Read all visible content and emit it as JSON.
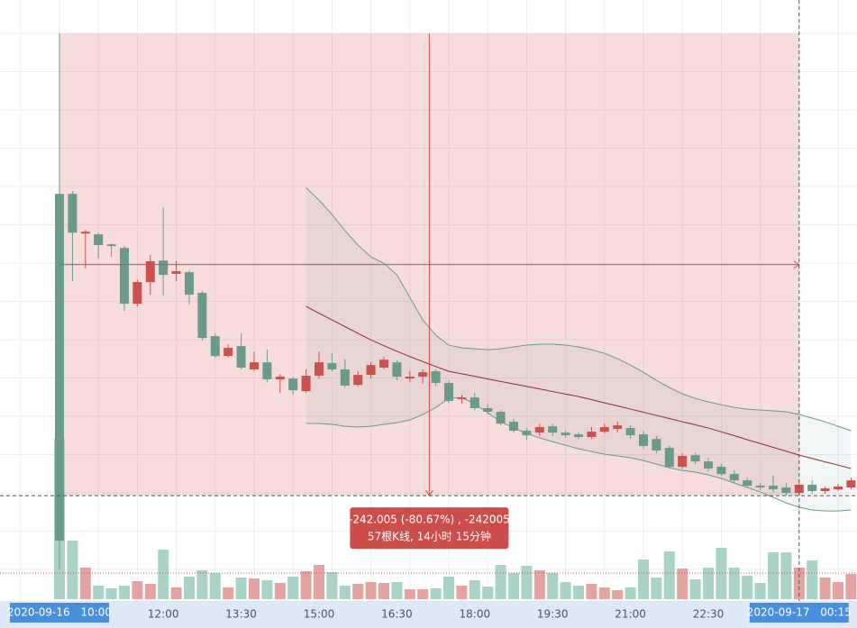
{
  "chart_data": {
    "type": "candlestick",
    "categories": [
      "2020-09-16 10:00",
      null,
      null,
      null,
      null,
      null,
      null,
      null,
      "12:00",
      null,
      null,
      null,
      null,
      null,
      "13:30",
      null,
      null,
      null,
      null,
      null,
      "15:00",
      null,
      null,
      null,
      null,
      null,
      "16:30",
      null,
      null,
      null,
      null,
      null,
      "18:00",
      null,
      null,
      null,
      null,
      null,
      "19:30",
      null,
      null,
      null,
      null,
      null,
      "21:00",
      null,
      null,
      null,
      null,
      null,
      "22:30",
      null,
      null,
      null,
      null,
      null,
      null,
      "2020-09-17 00:15",
      null,
      null,
      null,
      null
    ],
    "open": [
      216.0,
      216.0,
      195.2,
      194.8,
      189.6,
      187.7,
      158.5,
      169.8,
      181.1,
      174.1,
      175.0,
      164.2,
      141.5,
      131.1,
      136.3,
      124.1,
      127.8,
      118.9,
      119.3,
      112.7,
      120.8,
      127.4,
      124.1,
      116.0,
      121.2,
      125.0,
      127.8,
      119.3,
      120.3,
      123.1,
      117.0,
      108.5,
      109.4,
      103.8,
      101.9,
      96.7,
      92.0,
      91.0,
      94.3,
      91.0,
      90.1,
      88.7,
      91.5,
      92.9,
      93.4,
      90.1,
      87.7,
      83.0,
      73.1,
      79.2,
      75.9,
      73.1,
      69.3,
      66.0,
      63.2,
      63.2,
      62.3,
      59.4,
      63.7,
      60.4,
      61.3,
      62.3
    ],
    "high": [
      300,
      217.5,
      197.2,
      195.7,
      190.1,
      188.7,
      171.2,
      184.0,
      209.0,
      180.7,
      175.9,
      165.1,
      142.9,
      137.3,
      142.9,
      133.5,
      134.4,
      121.7,
      120.3,
      124.1,
      133.5,
      132.5,
      129.7,
      123.1,
      127.8,
      130.7,
      128.8,
      123.1,
      124.1,
      124.1,
      118.4,
      110.9,
      111.8,
      106.1,
      102.8,
      98.1,
      93.4,
      95.7,
      95.7,
      92.0,
      91.0,
      93.9,
      95.7,
      96.7,
      94.8,
      92.0,
      89.2,
      84.4,
      80.2,
      80.7,
      77.8,
      74.5,
      71.2,
      67.4,
      64.6,
      68.4,
      64.6,
      64.6,
      66.0,
      62.8,
      64.2,
      67.4
    ],
    "low": [
      19.3,
      170.3,
      177.0,
      182.1,
      183.0,
      154.7,
      157.1,
      163.2,
      162.7,
      170.3,
      158.0,
      139.2,
      130.2,
      130.2,
      124.1,
      123.1,
      117.5,
      111.8,
      110.9,
      111.8,
      119.3,
      123.1,
      114.6,
      115.1,
      119.3,
      124.1,
      118.4,
      117.5,
      116.6,
      115.6,
      106.6,
      106.1,
      102.8,
      100.5,
      94.8,
      91.0,
      87.3,
      89.2,
      89.2,
      88.2,
      87.7,
      87.7,
      90.6,
      91.0,
      87.7,
      82.5,
      80.2,
      72.2,
      72.2,
      74.5,
      70.8,
      68.4,
      64.6,
      62.3,
      60.9,
      59.9,
      58.0,
      58.0,
      58.9,
      58.9,
      60.4,
      61.3
    ],
    "close": [
      34.4,
      195.7,
      196.2,
      189.2,
      188.7,
      158.5,
      169.8,
      180.7,
      173.6,
      175.5,
      163.2,
      140.6,
      131.1,
      135.4,
      125.0,
      127.8,
      118.9,
      120.3,
      113.2,
      120.8,
      127.8,
      124.1,
      115.6,
      121.2,
      126.4,
      129.2,
      120.3,
      120.3,
      122.6,
      117.0,
      107.6,
      109.4,
      103.8,
      101.9,
      95.7,
      92.0,
      89.6,
      93.9,
      91.0,
      89.6,
      88.7,
      91.5,
      93.9,
      94.8,
      89.6,
      84.0,
      81.6,
      73.1,
      78.8,
      75.9,
      72.2,
      69.3,
      66.0,
      63.2,
      62.3,
      61.3,
      59.4,
      63.7,
      60.4,
      61.8,
      62.8,
      66.0
    ],
    "volume": [
      178,
      65,
      35,
      15,
      12,
      15,
      20,
      17,
      55,
      13,
      25,
      32,
      29,
      13,
      24,
      23,
      21,
      18,
      25,
      31,
      38,
      30,
      15,
      17,
      19,
      18,
      19,
      11,
      11,
      12,
      25,
      15,
      21,
      14,
      38,
      29,
      37,
      32,
      29,
      19,
      15,
      17,
      13,
      10,
      13,
      44,
      24,
      53,
      34,
      22,
      35,
      57,
      35,
      26,
      18,
      52,
      52,
      35,
      43,
      24,
      19,
      28
    ],
    "up_color": "#cc5250",
    "down_color": "#6b9a8b",
    "volume_up_color": "#e3a3a1",
    "volume_down_color": "#a9d3c6",
    "ylim": [
      3.8,
      317.5
    ],
    "volume_lim": [
      0,
      200
    ],
    "bands": {
      "upper": [
        null,
        null,
        null,
        null,
        null,
        null,
        null,
        null,
        null,
        null,
        null,
        null,
        null,
        null,
        null,
        null,
        null,
        null,
        null,
        219.2,
        212.7,
        205.2,
        196.7,
        189.2,
        183.0,
        179.7,
        173.6,
        161.8,
        150.0,
        142.0,
        136.8,
        135.4,
        134.9,
        134.4,
        134.9,
        135.9,
        136.8,
        137.3,
        137.3,
        136.8,
        135.9,
        134.4,
        132.5,
        129.7,
        126.4,
        122.6,
        118.4,
        114.6,
        111.3,
        108.9,
        107.1,
        105.6,
        104.2,
        103.3,
        102.8,
        102.4,
        101.9,
        100.5,
        98.6,
        96.7,
        94.3,
        92.0
      ],
      "middle": [
        null,
        null,
        null,
        null,
        null,
        null,
        null,
        null,
        null,
        null,
        null,
        null,
        null,
        null,
        null,
        null,
        null,
        null,
        null,
        157.1,
        153.5,
        150.0,
        146.5,
        143.0,
        139.5,
        136.5,
        133.6,
        130.8,
        128.2,
        125.6,
        123.1,
        121.8,
        120.5,
        119.1,
        117.8,
        116.5,
        115.2,
        113.9,
        112.5,
        111.2,
        109.9,
        108.3,
        106.6,
        105.0,
        103.3,
        101.7,
        100.0,
        98.4,
        96.7,
        95.1,
        93.4,
        91.4,
        89.4,
        87.3,
        85.3,
        83.3,
        81.3,
        79.2,
        77.5,
        75.7,
        74.0,
        72.2
      ],
      "lower": [
        null,
        null,
        null,
        null,
        null,
        null,
        null,
        null,
        null,
        null,
        null,
        null,
        null,
        null,
        null,
        null,
        null,
        null,
        null,
        95.8,
        95.8,
        95.3,
        94.3,
        93.9,
        94.3,
        95.3,
        96.2,
        97.6,
        100.5,
        104.2,
        108.9,
        109.4,
        106.1,
        101.4,
        96.7,
        93.4,
        90.6,
        88.2,
        86.3,
        84.4,
        82.5,
        81.1,
        79.7,
        78.8,
        77.8,
        76.4,
        74.5,
        72.6,
        71.2,
        70.3,
        68.9,
        67.0,
        64.6,
        62.3,
        59.9,
        57.1,
        54.2,
        51.9,
        50.5,
        50.0,
        50.0,
        50.5
      ],
      "band_color": "#6b9a8b",
      "middle_color": "#8b2f2f"
    },
    "measure": {
      "from_index": 0,
      "from_price": 300,
      "to_index": 57,
      "to_price": 57.995,
      "labels": [
        "-242.005 (-80.67%) , -242005",
        "57根K线, 14小时 15分钟"
      ],
      "color": "#cc4e4a"
    }
  }
}
